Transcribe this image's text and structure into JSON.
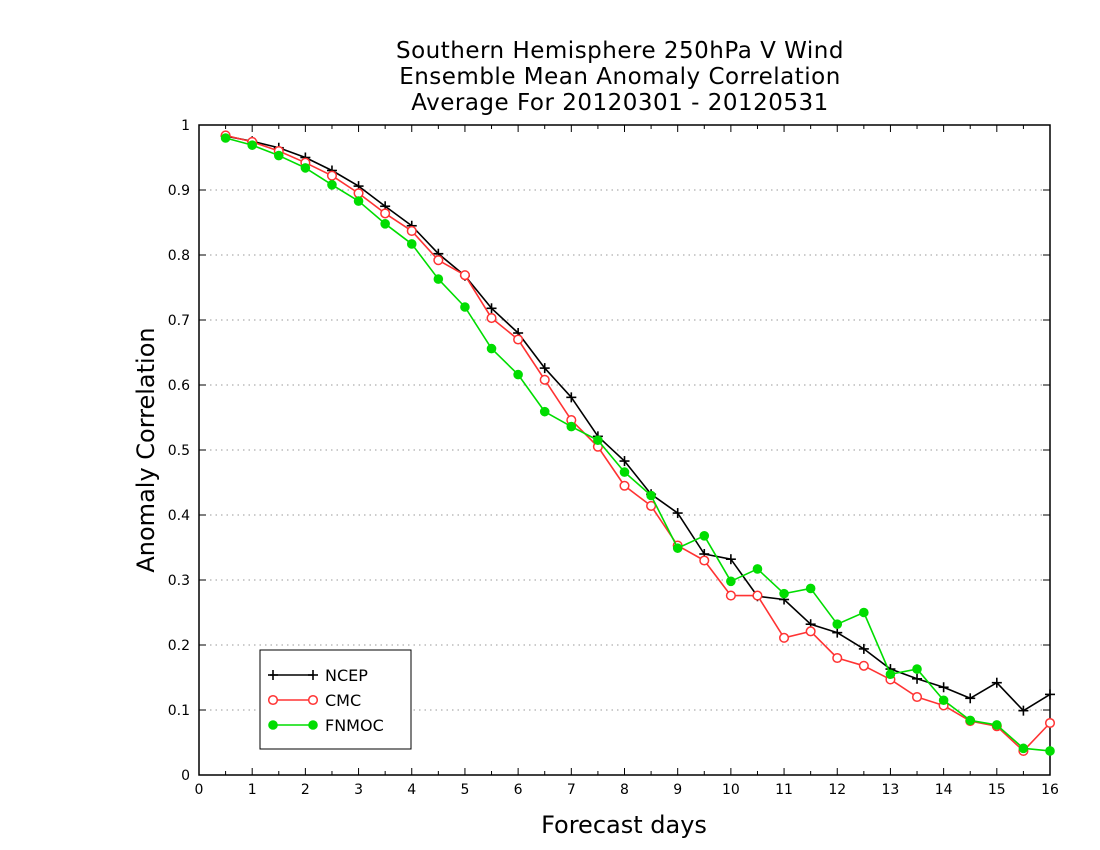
{
  "titles": {
    "line1": "Southern Hemisphere 250hPa V Wind",
    "line2": "Ensemble Mean Anomaly Correlation",
    "line3": "Average For 20120301 - 20120531"
  },
  "chart_data": {
    "type": "line",
    "title": "Southern Hemisphere 250hPa V Wind Ensemble Mean Anomaly Correlation Average For 20120301 - 20120531",
    "xlabel": "Forecast days",
    "ylabel": "Anomaly Correlation",
    "xlim": [
      0,
      16
    ],
    "ylim": [
      0,
      1
    ],
    "xticks": [
      "0",
      "1",
      "2",
      "3",
      "4",
      "5",
      "6",
      "7",
      "8",
      "9",
      "10",
      "11",
      "12",
      "13",
      "14",
      "15",
      "16"
    ],
    "yticks": [
      "0",
      "0.1",
      "0.2",
      "0.3",
      "0.4",
      "0.5",
      "0.6",
      "0.7",
      "0.8",
      "0.9",
      "1"
    ],
    "grid": "horizontal dotted",
    "legend_position": "bottom-left",
    "x": [
      0.5,
      1,
      1.5,
      2,
      2.5,
      3,
      3.5,
      4,
      4.5,
      5,
      5.5,
      6,
      6.5,
      7,
      7.5,
      8,
      8.5,
      9,
      9.5,
      10,
      10.5,
      11,
      11.5,
      12,
      12.5,
      13,
      13.5,
      14,
      14.5,
      15,
      15.5,
      16
    ],
    "series": [
      {
        "name": "NCEP",
        "color": "#000000",
        "marker": "plus",
        "values": [
          0.983,
          0.975,
          0.965,
          0.95,
          0.93,
          0.906,
          0.875,
          0.845,
          0.802,
          0.768,
          0.718,
          0.68,
          0.626,
          0.581,
          0.521,
          0.483,
          0.432,
          0.403,
          0.34,
          0.332,
          0.275,
          0.27,
          0.232,
          0.219,
          0.194,
          0.163,
          0.148,
          0.135,
          0.118,
          0.142,
          0.099,
          0.124
        ]
      },
      {
        "name": "CMC",
        "color": "#ff3333",
        "marker": "open-circle",
        "values": [
          0.984,
          0.974,
          0.96,
          0.942,
          0.922,
          0.895,
          0.864,
          0.837,
          0.792,
          0.769,
          0.703,
          0.67,
          0.608,
          0.546,
          0.505,
          0.445,
          0.414,
          0.353,
          0.33,
          0.276,
          0.276,
          0.211,
          0.221,
          0.18,
          0.168,
          0.147,
          0.12,
          0.107,
          0.083,
          0.075,
          0.037,
          0.08
        ]
      },
      {
        "name": "FNMOC",
        "color": "#00dd00",
        "marker": "filled-circle",
        "values": [
          0.98,
          0.969,
          0.953,
          0.934,
          0.908,
          0.883,
          0.848,
          0.817,
          0.763,
          0.72,
          0.656,
          0.616,
          0.559,
          0.536,
          0.515,
          0.466,
          0.43,
          0.349,
          0.368,
          0.298,
          0.317,
          0.279,
          0.287,
          0.232,
          0.25,
          0.155,
          0.163,
          0.115,
          0.084,
          0.077,
          0.041,
          0.037
        ]
      }
    ]
  }
}
